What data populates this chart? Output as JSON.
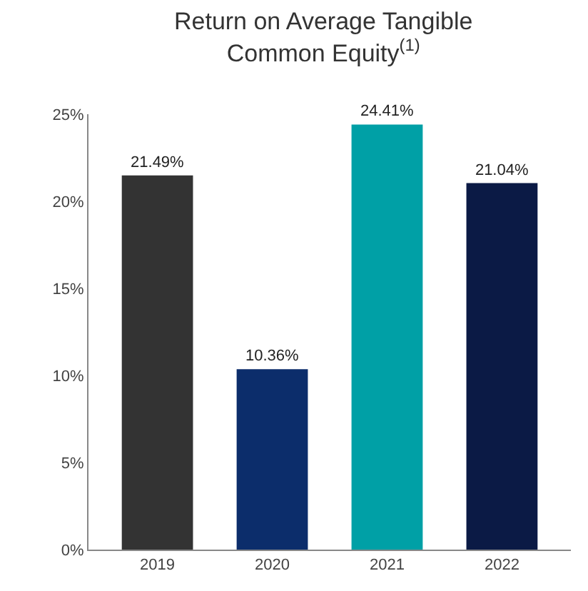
{
  "chart_data": {
    "type": "bar",
    "title": "Return on Average Tangible Common Equity$^{(1)}$",
    "categories": [
      "2019",
      "2020",
      "2021",
      "2022"
    ],
    "values": [
      21.49,
      10.36,
      24.41,
      21.04
    ],
    "colors": [
      "#333333",
      "#0c2d6b",
      "#00a0a6",
      "#0b1a45"
    ],
    "value_labels": [
      "21.49%",
      "10.36%",
      "24.41%",
      "21.04%"
    ],
    "ylim": [
      0,
      25
    ],
    "yticks": [
      {
        "value": 0,
        "label": "0%"
      },
      {
        "value": 5,
        "label": "5%"
      },
      {
        "value": 10,
        "label": "10%"
      },
      {
        "value": 15,
        "label": "15%"
      },
      {
        "value": 20,
        "label": "20%"
      },
      {
        "value": 25,
        "label": "25%"
      }
    ],
    "legend": false
  }
}
